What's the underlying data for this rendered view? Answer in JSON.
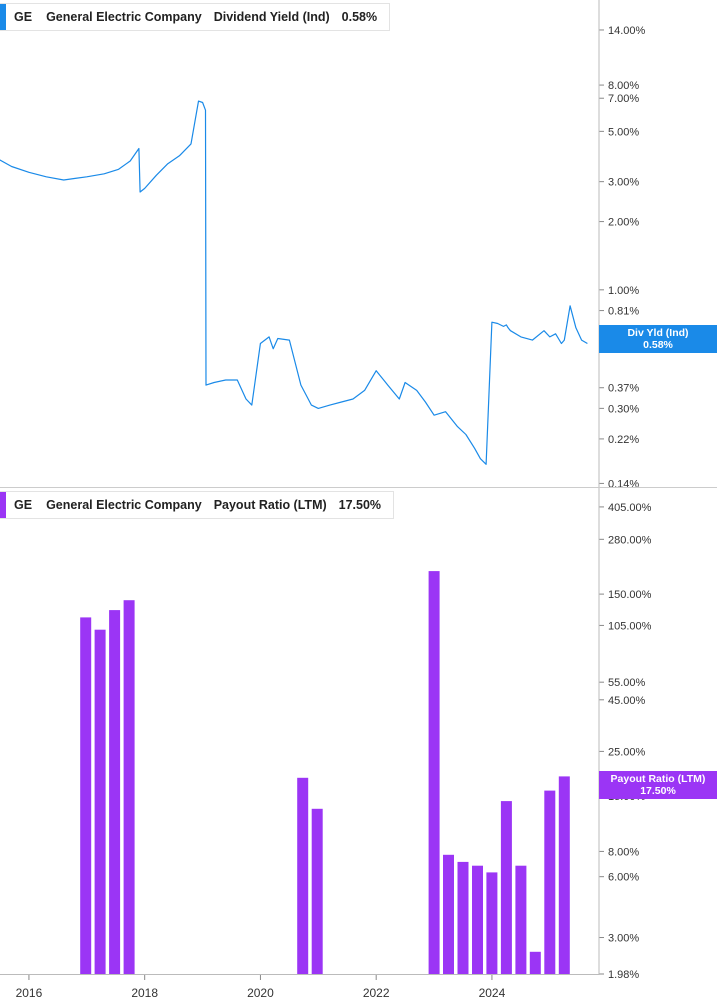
{
  "chart_data": [
    {
      "type": "line",
      "ticker": "GE",
      "company": "General Electric Company",
      "metric": "Dividend Yield (Ind)",
      "current_value": "0.58%",
      "tag_label": "Div Yld (Ind)",
      "tag_value": "0.58%",
      "color": "#1a8ae8",
      "y_scale": "log",
      "ylim": [
        0.135,
        17.5
      ],
      "y_ticks": [
        {
          "v": 14.0,
          "label": "14.00%"
        },
        {
          "v": 8.0,
          "label": "8.00%"
        },
        {
          "v": 7.0,
          "label": "7.00%"
        },
        {
          "v": 5.0,
          "label": "5.00%"
        },
        {
          "v": 3.0,
          "label": "3.00%"
        },
        {
          "v": 2.0,
          "label": "2.00%"
        },
        {
          "v": 1.0,
          "label": "1.00%"
        },
        {
          "v": 0.81,
          "label": "0.81%"
        },
        {
          "v": 0.58,
          "label": "0.58%"
        },
        {
          "v": 0.37,
          "label": "0.37%"
        },
        {
          "v": 0.3,
          "label": "0.30%"
        },
        {
          "v": 0.22,
          "label": "0.22%"
        },
        {
          "v": 0.14,
          "label": "0.14%"
        }
      ],
      "x": [
        2015.2,
        2015.45,
        2015.7,
        2016.0,
        2016.3,
        2016.6,
        2016.8,
        2017.0,
        2017.3,
        2017.55,
        2017.75,
        2017.9,
        2017.92,
        2018.0,
        2018.2,
        2018.4,
        2018.6,
        2018.8,
        2018.93,
        2019.0,
        2019.05,
        2019.06,
        2019.2,
        2019.4,
        2019.6,
        2019.75,
        2019.85,
        2020.0,
        2020.15,
        2020.22,
        2020.3,
        2020.5,
        2020.7,
        2020.8,
        2020.88,
        2021.0,
        2021.2,
        2021.4,
        2021.6,
        2021.8,
        2022.0,
        2022.2,
        2022.4,
        2022.5,
        2022.7,
        2022.85,
        2023.0,
        2023.2,
        2023.4,
        2023.55,
        2023.7,
        2023.8,
        2023.9,
        2024.0,
        2024.1,
        2024.2,
        2024.25,
        2024.28,
        2024.3,
        2024.32,
        2024.5,
        2024.7,
        2024.9,
        2025.0,
        2025.1,
        2025.2,
        2025.25,
        2025.35,
        2025.45,
        2025.55,
        2025.65
      ],
      "y": [
        3.7,
        3.8,
        3.5,
        3.3,
        3.15,
        3.05,
        3.1,
        3.15,
        3.25,
        3.4,
        3.7,
        4.2,
        2.7,
        2.8,
        3.2,
        3.6,
        3.9,
        4.4,
        6.8,
        6.7,
        6.2,
        0.38,
        0.39,
        0.4,
        0.4,
        0.33,
        0.31,
        0.58,
        0.62,
        0.55,
        0.61,
        0.6,
        0.38,
        0.34,
        0.31,
        0.3,
        0.31,
        0.32,
        0.33,
        0.36,
        0.44,
        0.38,
        0.33,
        0.39,
        0.36,
        0.32,
        0.28,
        0.29,
        0.25,
        0.23,
        0.2,
        0.18,
        0.17,
        0.72,
        0.71,
        0.69,
        0.7,
        0.68,
        0.67,
        0.66,
        0.62,
        0.6,
        0.66,
        0.62,
        0.64,
        0.58,
        0.6,
        0.85,
        0.68,
        0.6,
        0.58
      ],
      "xlim": [
        2015.5,
        2025.85
      ]
    },
    {
      "type": "bar",
      "ticker": "GE",
      "company": "General Electric Company",
      "metric": "Payout Ratio (LTM)",
      "current_value": "17.50%",
      "tag_label": "Payout Ratio (LTM)",
      "tag_value": "17.50%",
      "color": "#9b35f5",
      "y_scale": "log",
      "ylim": [
        1.98,
        480
      ],
      "y_ticks": [
        {
          "v": 405,
          "label": "405.00%"
        },
        {
          "v": 280,
          "label": "280.00%"
        },
        {
          "v": 150,
          "label": "150.00%"
        },
        {
          "v": 105,
          "label": "105.00%"
        },
        {
          "v": 55,
          "label": "55.00%"
        },
        {
          "v": 45,
          "label": "45.00%"
        },
        {
          "v": 25,
          "label": "25.00%"
        },
        {
          "v": 15,
          "label": "15.00%"
        },
        {
          "v": 8,
          "label": "8.00%"
        },
        {
          "v": 6,
          "label": "6.00%"
        },
        {
          "v": 3,
          "label": "3.00%"
        },
        {
          "v": 1.98,
          "label": "1.98%"
        }
      ],
      "x": [
        2016.98,
        2017.23,
        2017.48,
        2017.73,
        2020.73,
        2020.98,
        2023.0,
        2023.25,
        2023.5,
        2023.75,
        2024.0,
        2024.25,
        2024.5,
        2024.75,
        2025.0,
        2025.25
      ],
      "values": [
        115,
        100,
        125,
        140,
        18.5,
        13,
        195,
        7.7,
        7.1,
        6.8,
        6.3,
        14.2,
        6.8,
        2.55,
        16,
        18.8
      ],
      "xlim": [
        2015.5,
        2025.85
      ],
      "x_ticks": [
        "2016",
        "2018",
        "2020",
        "2022",
        "2024"
      ],
      "x_tick_values": [
        2016,
        2018,
        2020,
        2022,
        2024
      ]
    }
  ]
}
